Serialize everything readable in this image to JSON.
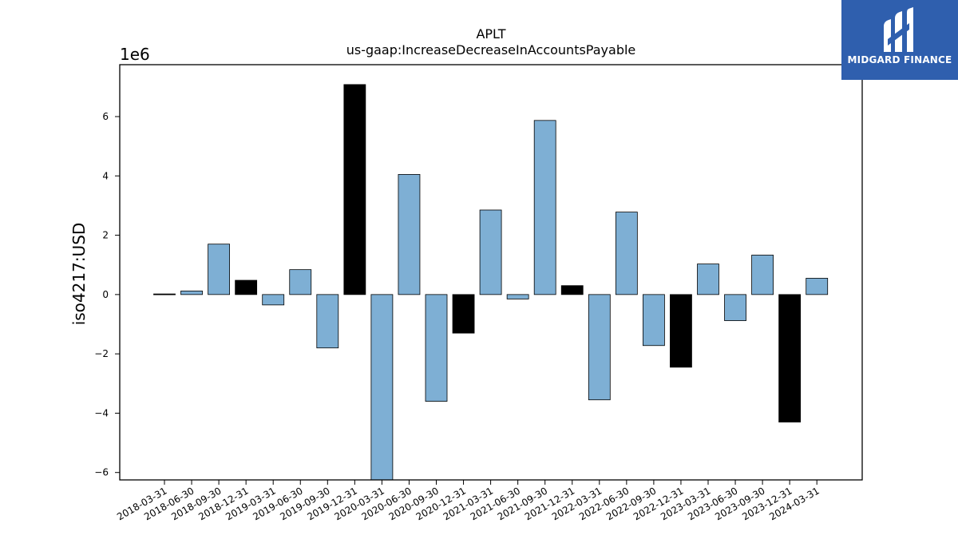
{
  "chart_data": {
    "type": "bar",
    "title": "APLT",
    "subtitle": "us-gaap:IncreaseDecreaseInAccountsPayable",
    "xlabel": "",
    "ylabel": "iso4217:USD",
    "y_offset_label": "1e6",
    "ylim": [
      -6.25,
      7.75
    ],
    "y_ticks": [
      -6,
      -4,
      -2,
      0,
      2,
      4,
      6
    ],
    "y_tick_labels": [
      "−6",
      "−4",
      "−2",
      "0",
      "2",
      "4",
      "6"
    ],
    "colors": {
      "quarter": "#7eafd4",
      "fiscal_year_end": "#000000",
      "edge": "#000000"
    },
    "categories": [
      "2018-03-31",
      "2018-06-30",
      "2018-09-30",
      "2018-12-31",
      "2019-03-31",
      "2019-06-30",
      "2019-09-30",
      "2019-12-31",
      "2020-03-31",
      "2020-06-30",
      "2020-09-30",
      "2020-12-31",
      "2021-03-31",
      "2021-06-30",
      "2021-09-30",
      "2021-12-31",
      "2022-03-31",
      "2022-06-30",
      "2022-09-30",
      "2022-12-31",
      "2023-03-31",
      "2023-06-30",
      "2023-09-30",
      "2023-12-31",
      "2024-03-31"
    ],
    "values": [
      0.02,
      0.12,
      1.7,
      0.48,
      -0.35,
      0.84,
      -1.8,
      7.08,
      -6.4,
      4.05,
      -3.6,
      -1.3,
      2.85,
      -0.15,
      5.87,
      0.3,
      -3.55,
      2.78,
      -1.72,
      -2.45,
      1.03,
      -0.88,
      1.33,
      -4.3,
      0.55
    ],
    "highlight": [
      true,
      false,
      false,
      true,
      false,
      false,
      false,
      true,
      false,
      false,
      false,
      true,
      false,
      false,
      false,
      true,
      false,
      false,
      false,
      true,
      false,
      false,
      false,
      true,
      false
    ]
  },
  "logo": {
    "brand": "MIDGARD FINANCE",
    "icon": "midgard-logo-icon"
  }
}
